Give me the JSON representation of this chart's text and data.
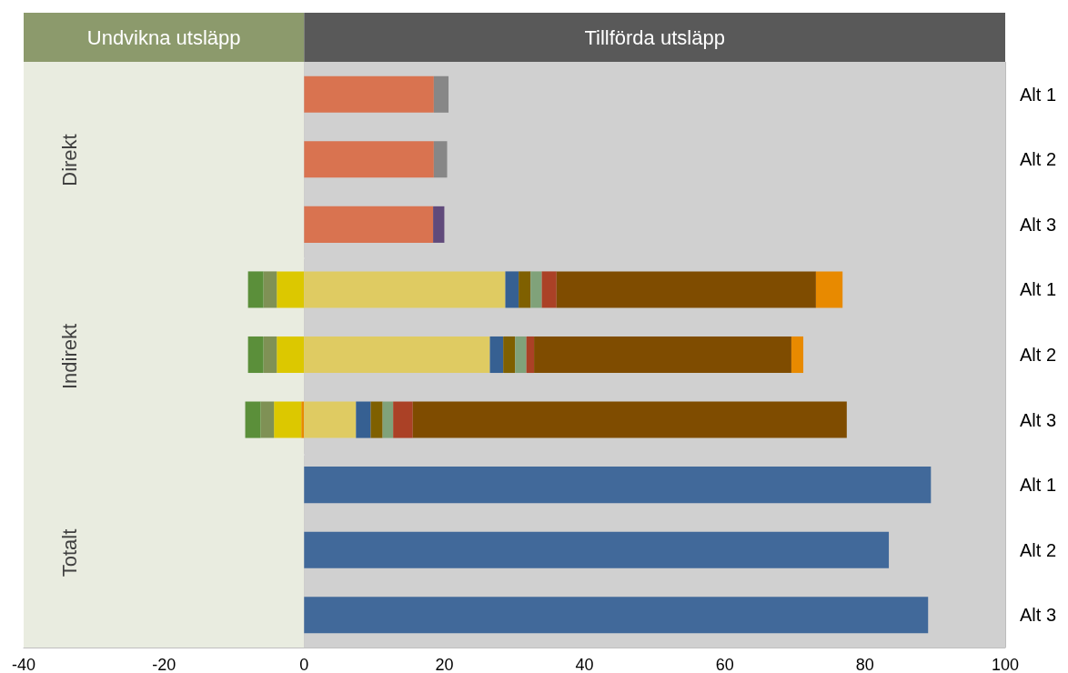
{
  "chart_data": {
    "type": "bar",
    "orientation": "horizontal",
    "stacked": true,
    "grid": "x",
    "categories": [
      "Alt 1",
      "Alt 2",
      "Alt 3",
      "Alt 1",
      "Alt 2",
      "Alt 3",
      "Alt 1",
      "Alt 2",
      "Alt 3"
    ],
    "xlim": [
      -40,
      100
    ],
    "xticks": [
      -40,
      -20,
      0,
      20,
      40,
      60,
      80,
      100
    ],
    "annotations": [
      "Direkt",
      "Indirekt",
      "Totalt"
    ],
    "bands": [
      {
        "axis": "x",
        "from": -40,
        "to": 0,
        "label": "Undvikna utsläpp",
        "color": "#e9ece0"
      },
      {
        "axis": "x",
        "from": 0,
        "to": 100,
        "label": "Tillförda utsläpp",
        "color": "#d0d0d0"
      }
    ],
    "series": [
      {
        "color": "#d97350",
        "values": [
          18.5,
          18.5,
          18.4,
          null,
          null,
          null,
          null,
          null,
          null
        ]
      },
      {
        "color": "#878787",
        "values": [
          2.1,
          1.9,
          null,
          null,
          null,
          null,
          null,
          null,
          null
        ]
      },
      {
        "color": "#604a7b",
        "values": [
          null,
          null,
          1.6,
          null,
          null,
          null,
          null,
          null,
          null
        ]
      },
      {
        "color": "#e88a00",
        "values": [
          null,
          null,
          null,
          null,
          null,
          -0.4,
          null,
          null,
          null
        ]
      },
      {
        "color": "#dcc800",
        "values": [
          null,
          null,
          null,
          -3.9,
          -3.9,
          -3.9,
          null,
          null,
          null
        ]
      },
      {
        "color": "#7f9155",
        "values": [
          null,
          null,
          null,
          -1.9,
          -1.9,
          -1.9,
          null,
          null,
          null
        ]
      },
      {
        "color": "#5b8f3a",
        "values": [
          null,
          null,
          null,
          -2.2,
          -2.2,
          -2.2,
          null,
          null,
          null
        ]
      },
      {
        "color": "#dfcb62",
        "values": [
          null,
          null,
          null,
          28.7,
          26.5,
          7.4,
          null,
          null,
          null
        ]
      },
      {
        "color": "#366092",
        "values": [
          null,
          null,
          null,
          1.9,
          1.9,
          2.1,
          null,
          null,
          null
        ]
      },
      {
        "color": "#7f6000",
        "values": [
          null,
          null,
          null,
          1.7,
          1.7,
          1.7,
          null,
          null,
          null
        ]
      },
      {
        "color": "#80a27a",
        "values": [
          null,
          null,
          null,
          1.6,
          1.6,
          1.5,
          null,
          null,
          null
        ]
      },
      {
        "color": "#ab4126",
        "values": [
          null,
          null,
          null,
          2.1,
          1.1,
          2.8,
          null,
          null,
          null
        ]
      },
      {
        "color": "#7f4c00",
        "values": [
          null,
          null,
          null,
          37.0,
          36.7,
          61.9,
          null,
          null,
          null
        ]
      },
      {
        "color": "#e88a00",
        "values": [
          null,
          null,
          null,
          3.8,
          1.7,
          null,
          null,
          null,
          null
        ]
      },
      {
        "color": "#41699a",
        "values": [
          null,
          null,
          null,
          null,
          null,
          null,
          89.4,
          83.4,
          89.0
        ]
      }
    ]
  }
}
